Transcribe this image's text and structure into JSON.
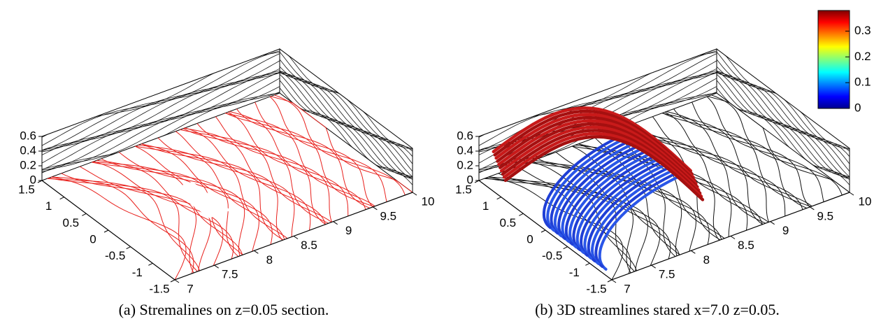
{
  "chart_data": [
    {
      "type": "streamline3d",
      "caption": "(a) Stremalines on z=0.05 section.",
      "xlim": [
        7,
        10
      ],
      "xticks": [
        7,
        7.5,
        8,
        8.5,
        9,
        9.5,
        10
      ],
      "ylim": [
        -1.5,
        1.5
      ],
      "yticks": [
        -1.5,
        -1,
        -0.5,
        0,
        0.5,
        1,
        1.5
      ],
      "zlim": [
        0,
        0.6
      ],
      "zticks": [
        0,
        0.2,
        0.4,
        0.6
      ],
      "color": "#e8201c"
    },
    {
      "type": "streamline3d",
      "caption": "(b) 3D streamlines stared x=7.0 z=0.05.",
      "xlim": [
        7,
        10
      ],
      "xticks": [
        7,
        7.5,
        8,
        8.5,
        9,
        9.5,
        10
      ],
      "ylim": [
        -1.5,
        1.5
      ],
      "yticks": [
        -1.5,
        -1,
        -0.5,
        0,
        0.5,
        1,
        1.5
      ],
      "zlim": [
        0,
        0.6
      ],
      "zticks": [
        0,
        0.2,
        0.4,
        0.6
      ],
      "color": "#111111",
      "colorbar": {
        "lim": [
          0,
          0.38
        ],
        "ticks": [
          0,
          0.1,
          0.2,
          0.3
        ]
      }
    }
  ]
}
